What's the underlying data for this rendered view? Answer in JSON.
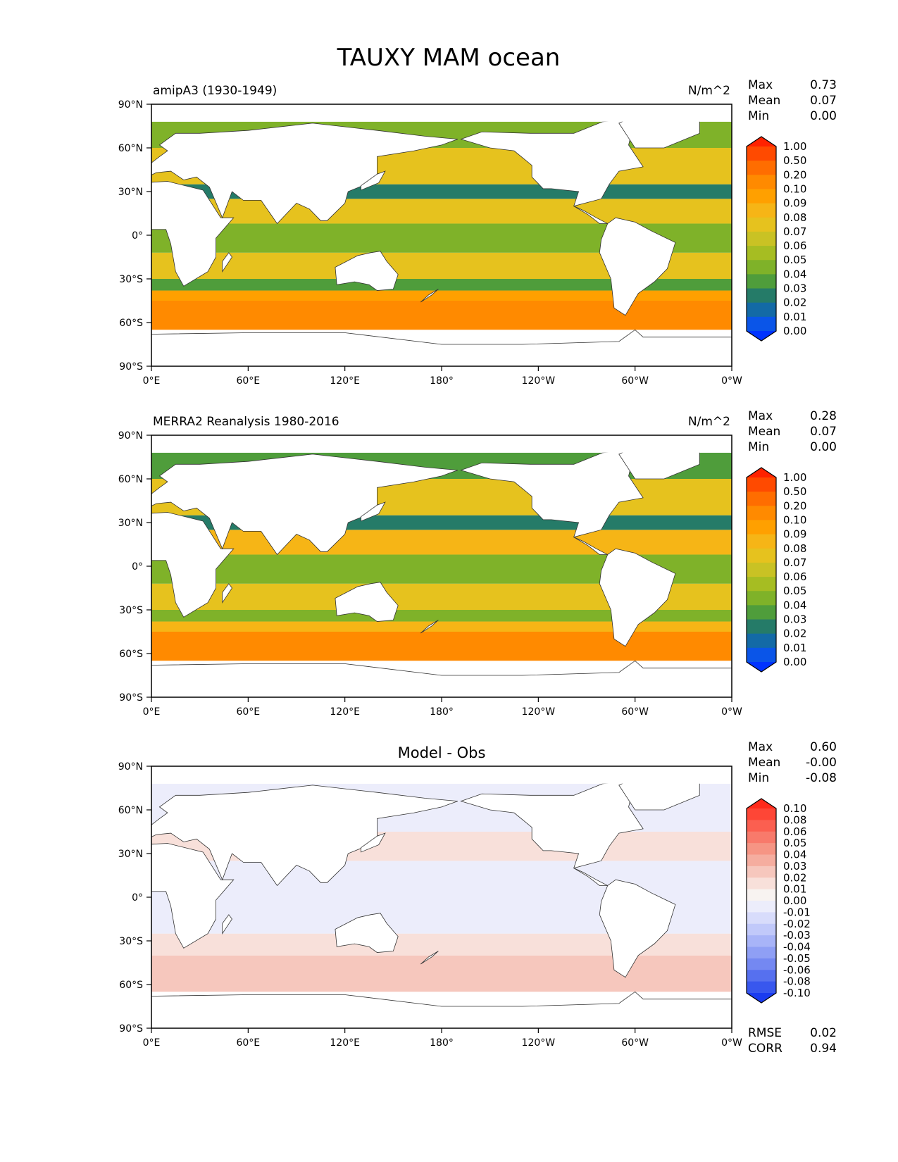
{
  "figure": {
    "title": "TAUXY MAM ocean"
  },
  "axes": {
    "lat_ticks": [
      "90°N",
      "60°N",
      "30°N",
      "0°",
      "30°S",
      "60°S",
      "90°S"
    ],
    "lon_ticks": [
      "0°E",
      "60°E",
      "120°E",
      "180°",
      "120°W",
      "60°W",
      "0°W"
    ]
  },
  "stat_labels": {
    "max": "Max",
    "mean": "Mean",
    "min": "Min"
  },
  "panels": [
    {
      "id": "model",
      "left_title": "amipA3 (1930-1949)",
      "center_title": "",
      "units": "N/m^2",
      "stats": {
        "max": "0.73",
        "mean": "0.07",
        "min": "0.00"
      },
      "colorbar": {
        "labels": [
          "1.00",
          "0.50",
          "0.20",
          "0.10",
          "0.09",
          "0.08",
          "0.07",
          "0.06",
          "0.05",
          "0.04",
          "0.03",
          "0.02",
          "0.01",
          "0.00"
        ],
        "colors": [
          "#ff2200",
          "#ff4a00",
          "#ff6d00",
          "#ff8a00",
          "#ffa000",
          "#f6b516",
          "#e6c21e",
          "#c9c224",
          "#a6bd22",
          "#7fb229",
          "#4f9d3b",
          "#257b68",
          "#136aa6",
          "#0a55e8",
          "#0033ff"
        ]
      }
    },
    {
      "id": "obs",
      "left_title": "MERRA2 Reanalysis 1980-2016",
      "center_title": "",
      "units": "N/m^2",
      "stats": {
        "max": "0.28",
        "mean": "0.07",
        "min": "0.00"
      },
      "colorbar": {
        "labels": [
          "1.00",
          "0.50",
          "0.20",
          "0.10",
          "0.09",
          "0.08",
          "0.07",
          "0.06",
          "0.05",
          "0.04",
          "0.03",
          "0.02",
          "0.01",
          "0.00"
        ],
        "colors": [
          "#ff2200",
          "#ff4a00",
          "#ff6d00",
          "#ff8a00",
          "#ffa000",
          "#f6b516",
          "#e6c21e",
          "#c9c224",
          "#a6bd22",
          "#7fb229",
          "#4f9d3b",
          "#257b68",
          "#136aa6",
          "#0a55e8",
          "#0033ff"
        ]
      }
    },
    {
      "id": "diff",
      "left_title": "",
      "center_title": "Model - Obs",
      "units": "",
      "stats": {
        "max": "0.60",
        "mean": "-0.00",
        "min": "-0.08"
      },
      "extra_stats": [
        {
          "label": "RMSE",
          "value": "0.02"
        },
        {
          "label": "CORR",
          "value": "0.94"
        }
      ],
      "colorbar": {
        "labels": [
          "0.10",
          "0.08",
          "0.06",
          "0.05",
          "0.04",
          "0.03",
          "0.02",
          "0.01",
          "0.00",
          "-0.01",
          "-0.02",
          "-0.03",
          "-0.04",
          "-0.05",
          "-0.06",
          "-0.08",
          "-0.10"
        ],
        "colors": [
          "#ff2a1a",
          "#fe4636",
          "#fb5f50",
          "#f87a6b",
          "#f69584",
          "#f5ad9f",
          "#f6c7bd",
          "#f8e0da",
          "#f8f3f1",
          "#ecedfb",
          "#d8dcfb",
          "#c1c9fa",
          "#a8b4f8",
          "#8f9ff5",
          "#7488f2",
          "#5670ef",
          "#3857ee",
          "#1a3cf0"
        ]
      }
    }
  ],
  "map_fields": {
    "model": [
      {
        "name": "band-55S",
        "lat": [
          -65,
          -45
        ],
        "color": "#ff8a00"
      },
      {
        "name": "band-40S",
        "lat": [
          -45,
          -38
        ],
        "color": "#ffa000"
      },
      {
        "name": "band-35S",
        "lat": [
          -38,
          -30
        ],
        "color": "#4f9d3b"
      },
      {
        "name": "band-subtropics-S",
        "lat": [
          -30,
          -12
        ],
        "color": "#e6c21e"
      },
      {
        "name": "band-equator",
        "lat": [
          -12,
          8
        ],
        "color": "#7fb229"
      },
      {
        "name": "band-tropics-N",
        "lat": [
          8,
          25
        ],
        "color": "#e6c21e"
      },
      {
        "name": "band-30N",
        "lat": [
          25,
          35
        ],
        "color": "#257b68"
      },
      {
        "name": "band-midlat-N",
        "lat": [
          35,
          60
        ],
        "color": "#e6c21e"
      },
      {
        "name": "band-high-N",
        "lat": [
          60,
          78
        ],
        "color": "#7fb229"
      }
    ],
    "obs": [
      {
        "name": "band-55S",
        "lat": [
          -65,
          -45
        ],
        "color": "#ff8a00"
      },
      {
        "name": "band-40S",
        "lat": [
          -45,
          -38
        ],
        "color": "#f6b516"
      },
      {
        "name": "band-35S",
        "lat": [
          -38,
          -30
        ],
        "color": "#7fb229"
      },
      {
        "name": "band-subtropics-S",
        "lat": [
          -30,
          -12
        ],
        "color": "#e6c21e"
      },
      {
        "name": "band-equator",
        "lat": [
          -12,
          8
        ],
        "color": "#7fb229"
      },
      {
        "name": "band-tropics-N",
        "lat": [
          8,
          25
        ],
        "color": "#f6b516"
      },
      {
        "name": "band-30N",
        "lat": [
          25,
          35
        ],
        "color": "#257b68"
      },
      {
        "name": "band-midlat-N",
        "lat": [
          35,
          60
        ],
        "color": "#e6c21e"
      },
      {
        "name": "band-high-N",
        "lat": [
          60,
          78
        ],
        "color": "#4f9d3b"
      }
    ],
    "diff": [
      {
        "name": "band-55S",
        "lat": [
          -65,
          -40
        ],
        "color": "#f6c7bd"
      },
      {
        "name": "band-35S",
        "lat": [
          -40,
          -25
        ],
        "color": "#f8e0da"
      },
      {
        "name": "band-tropics",
        "lat": [
          -25,
          25
        ],
        "color": "#ecedfb"
      },
      {
        "name": "band-30N",
        "lat": [
          25,
          45
        ],
        "color": "#f8e0da"
      },
      {
        "name": "band-midlat-N",
        "lat": [
          45,
          78
        ],
        "color": "#ecedfb"
      }
    ]
  }
}
